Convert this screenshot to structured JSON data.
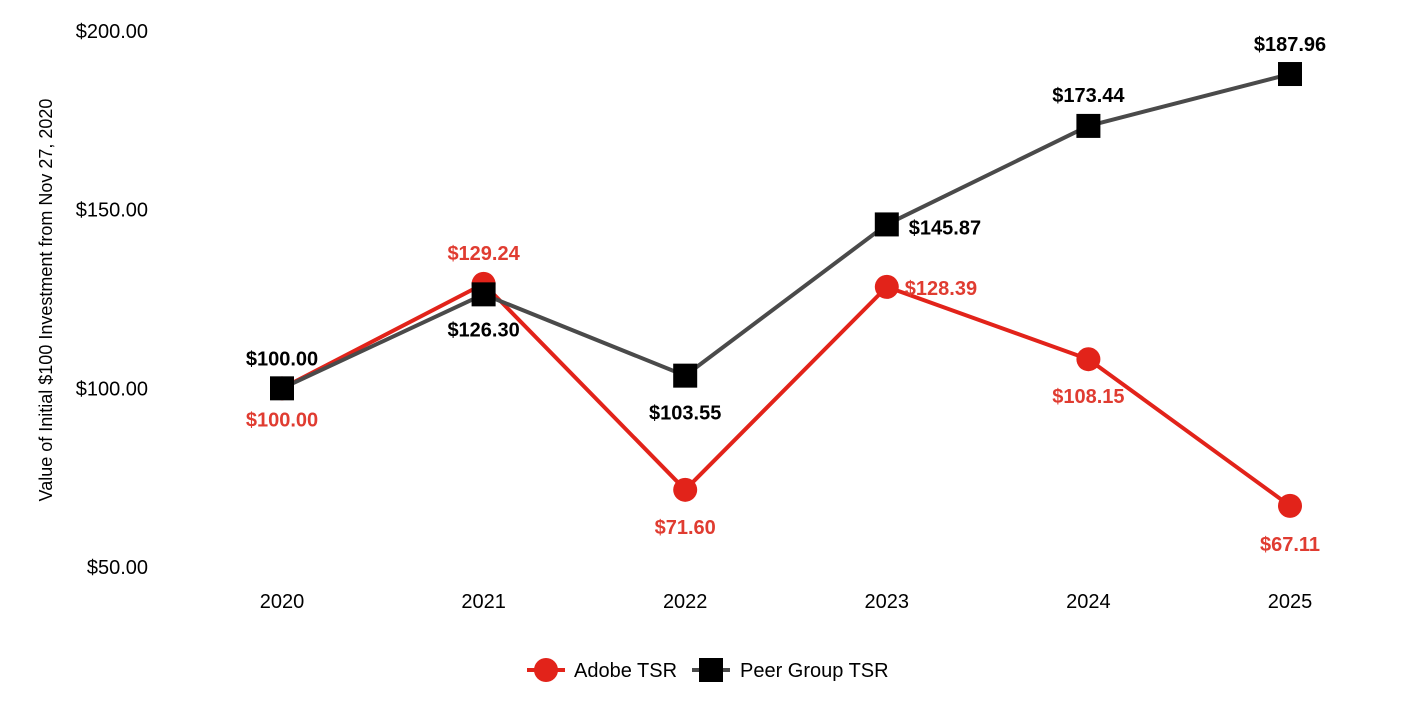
{
  "chart_data": {
    "type": "line",
    "title": "",
    "xlabel": "",
    "ylabel": "Value of Initial $100 Investment from Nov 27, 2020",
    "categories": [
      "2020",
      "2021",
      "2022",
      "2023",
      "2024",
      "2025"
    ],
    "ylim": [
      50,
      200
    ],
    "yticks": [
      50,
      100,
      150,
      200
    ],
    "ytick_labels": [
      "$50.00",
      "$100.00",
      "$150.00",
      "$200.00"
    ],
    "grid": false,
    "legend_position": "bottom-center",
    "series": [
      {
        "name": "Adobe TSR",
        "marker": "circle",
        "color": "#e2231a",
        "label_color": "#e03c31",
        "values": [
          100.0,
          129.24,
          71.6,
          128.39,
          108.15,
          67.11
        ],
        "labels": [
          "$100.00",
          "$129.24",
          "$71.60",
          "$128.39",
          "$108.15",
          "$67.11"
        ]
      },
      {
        "name": "Peer Group TSR",
        "marker": "square",
        "color": "#4a4a4a",
        "marker_color": "#000000",
        "label_color": "#000000",
        "values": [
          100.0,
          126.3,
          103.55,
          145.87,
          173.44,
          187.96
        ],
        "labels": [
          "$100.00",
          "$126.30",
          "$103.55",
          "$145.87",
          "$173.44",
          "$187.96"
        ]
      }
    ]
  }
}
